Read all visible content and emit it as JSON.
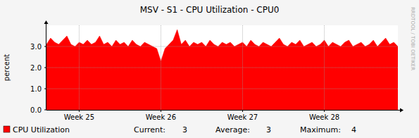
{
  "chart_data": {
    "type": "area",
    "title": "MSV - S1 - CPU Utilization - CPU0",
    "y_label": "percent",
    "watermark": "RRDTOOL / TOBI OETIKER",
    "x": [
      24.6,
      24.65,
      24.7,
      24.75,
      24.8,
      24.85,
      24.9,
      24.95,
      25.0,
      25.05,
      25.1,
      25.15,
      25.2,
      25.25,
      25.3,
      25.35,
      25.4,
      25.45,
      25.5,
      25.55,
      25.6,
      25.65,
      25.7,
      25.75,
      25.8,
      25.85,
      25.9,
      25.95,
      26.0,
      26.05,
      26.1,
      26.15,
      26.2,
      26.25,
      26.3,
      26.35,
      26.4,
      26.45,
      26.5,
      26.55,
      26.6,
      26.65,
      26.7,
      26.75,
      26.8,
      26.85,
      26.9,
      26.95,
      27.0,
      27.05,
      27.1,
      27.15,
      27.2,
      27.25,
      27.3,
      27.35,
      27.4,
      27.45,
      27.5,
      27.55,
      27.6,
      27.65,
      27.7,
      27.75,
      27.8,
      27.85,
      27.9,
      27.95,
      28.0,
      28.05,
      28.1,
      28.15,
      28.2,
      28.25,
      28.3,
      28.35,
      28.4,
      28.45,
      28.5,
      28.55,
      28.6,
      28.65,
      28.7,
      28.75,
      28.8,
      28.85,
      28.9
    ],
    "series": [
      {
        "name": "CPU Utilization",
        "color": "#ff0000",
        "values": [
          3.1,
          3.4,
          3.2,
          3.1,
          3.3,
          3.5,
          3.1,
          3.0,
          3.2,
          3.1,
          3.3,
          3.1,
          3.2,
          3.5,
          3.1,
          3.2,
          3.0,
          3.3,
          3.1,
          3.2,
          3.0,
          3.3,
          3.1,
          3.0,
          3.2,
          3.1,
          3.0,
          2.9,
          2.3,
          2.9,
          3.1,
          3.3,
          3.8,
          3.1,
          3.3,
          3.0,
          3.2,
          3.1,
          3.2,
          3.0,
          3.3,
          3.1,
          3.0,
          3.2,
          3.1,
          3.2,
          3.0,
          3.1,
          3.2,
          3.0,
          3.3,
          3.1,
          3.0,
          3.2,
          3.1,
          3.0,
          3.2,
          3.4,
          3.1,
          3.0,
          3.2,
          3.1,
          3.3,
          3.0,
          3.1,
          3.2,
          3.0,
          3.1,
          3.3,
          3.0,
          3.2,
          3.1,
          3.0,
          3.2,
          3.3,
          3.0,
          3.1,
          3.2,
          3.0,
          3.1,
          3.3,
          3.0,
          3.2,
          3.4,
          3.1,
          3.2,
          3.0
        ]
      }
    ],
    "stats": [
      {
        "label": "Current:",
        "value": 3
      },
      {
        "label": "Average:",
        "value": 3
      },
      {
        "label": "Maximum:",
        "value": 4
      }
    ],
    "xlim": [
      24.6,
      28.9
    ],
    "xticks": [
      {
        "value": 25,
        "label": "Week 25"
      },
      {
        "value": 26,
        "label": "Week 26"
      },
      {
        "value": 27,
        "label": "Week 27"
      },
      {
        "value": 28,
        "label": "Week 28"
      }
    ],
    "ylim": [
      0,
      4
    ],
    "yticks": [
      {
        "value": 0,
        "label": "0.0"
      },
      {
        "value": 1,
        "label": "1.0"
      },
      {
        "value": 2,
        "label": "2.0"
      },
      {
        "value": 3,
        "label": "3.0"
      }
    ],
    "grid": true
  }
}
